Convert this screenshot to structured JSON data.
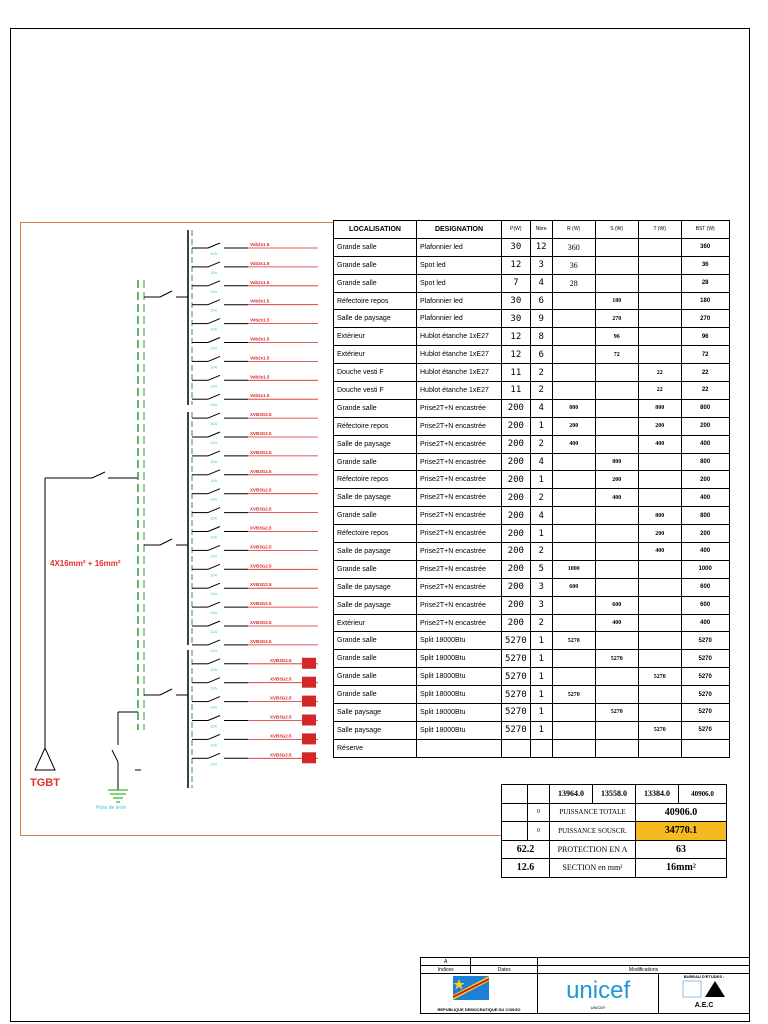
{
  "schema": {
    "tgbt_label": "TGBT",
    "cable_label": "4X16mm² + 16mm²",
    "ground_label": "Prise de terre",
    "breaker_label": "10A",
    "cable_types": {
      "cable_a": "Vob2x1.5",
      "cable_b": "Vob3x1.5",
      "cable_c": "XVB3G2.5",
      "cable_d": "XVB3G2.5"
    }
  },
  "table": {
    "headers": [
      "LOCALISATION",
      "DESIGNATION",
      "P(W)",
      "Nbre",
      "R (W)",
      "S (W)",
      "T (W)",
      "BST (W)"
    ],
    "rows": [
      {
        "loc": "Grande salle",
        "des": "Plafonnier led",
        "p": "30",
        "n": "12",
        "r": "360",
        "s": "",
        "t": "",
        "tot": "360"
      },
      {
        "loc": "Grande salle",
        "des": "Spot  led",
        "p": "12",
        "n": "3",
        "r": "36",
        "s": "",
        "t": "",
        "tot": "36"
      },
      {
        "loc": "Grande salle",
        "des": "Spot  led",
        "p": "7",
        "n": "4",
        "r": "28",
        "s": "",
        "t": "",
        "tot": "28"
      },
      {
        "loc": "Réfectoire  repos",
        "des": "Plafonnier led",
        "p": "30",
        "n": "6",
        "r": "",
        "s": "180",
        "t": "",
        "tot": "180"
      },
      {
        "loc": "Salle de paysage",
        "des": "Plafonnier led",
        "p": "30",
        "n": "9",
        "r": "",
        "s": "270",
        "t": "",
        "tot": "270"
      },
      {
        "loc": "Extérieur",
        "des": "Hublot étanche 1xE27",
        "p": "12",
        "n": "8",
        "r": "",
        "s": "96",
        "t": "",
        "tot": "96"
      },
      {
        "loc": "Extérieur",
        "des": "Hublot étanche 1xE27",
        "p": "12",
        "n": "6",
        "r": "",
        "s": "72",
        "t": "",
        "tot": "72"
      },
      {
        "loc": "Douche vesti F",
        "des": "Hublot étanche 1xE27",
        "p": "11",
        "n": "2",
        "r": "",
        "s": "",
        "t": "22",
        "tot": "22"
      },
      {
        "loc": "Douche vesti F",
        "des": "Hublot étanche 1xE27",
        "p": "11",
        "n": "2",
        "r": "",
        "s": "",
        "t": "22",
        "tot": "22"
      },
      {
        "loc": "Grande salle",
        "des": "Prise2T+N encastrée",
        "p": "200",
        "n": "4",
        "r": "800",
        "s": "",
        "t": "800",
        "tot": "800"
      },
      {
        "loc": "Réfectoire repos",
        "des": "Prise2T+N encastrée",
        "p": "200",
        "n": "1",
        "r": "200",
        "s": "",
        "t": "200",
        "tot": "200"
      },
      {
        "loc": "Salle de paysage",
        "des": "Prise2T+N encastrée",
        "p": "200",
        "n": "2",
        "r": "400",
        "s": "",
        "t": "400",
        "tot": "400"
      },
      {
        "loc": "Grande salle",
        "des": "Prise2T+N encastrée",
        "p": "200",
        "n": "4",
        "r": "",
        "s": "800",
        "t": "",
        "tot": "800"
      },
      {
        "loc": "Réfectoire repos",
        "des": "Prise2T+N encastrée",
        "p": "200",
        "n": "1",
        "r": "",
        "s": "200",
        "t": "",
        "tot": "200"
      },
      {
        "loc": "Salle de paysage",
        "des": "Prise2T+N encastrée",
        "p": "200",
        "n": "2",
        "r": "",
        "s": "400",
        "t": "",
        "tot": "400"
      },
      {
        "loc": "Grande salle",
        "des": "Prise2T+N encastrée",
        "p": "200",
        "n": "4",
        "r": "",
        "s": "",
        "t": "800",
        "tot": "800"
      },
      {
        "loc": "Réfectoire repos",
        "des": "Prise2T+N encastrée",
        "p": "200",
        "n": "1",
        "r": "",
        "s": "",
        "t": "200",
        "tot": "200"
      },
      {
        "loc": "Salle de paysage",
        "des": "Prise2T+N encastrée",
        "p": "200",
        "n": "2",
        "r": "",
        "s": "",
        "t": "400",
        "tot": "400"
      },
      {
        "loc": "Grande salle",
        "des": "Prise2T+N encastrée",
        "p": "200",
        "n": "5",
        "r": "1000",
        "s": "",
        "t": "",
        "tot": "1000"
      },
      {
        "loc": "Salle de paysage",
        "des": "Prise2T+N encastrée",
        "p": "200",
        "n": "3",
        "r": "600",
        "s": "",
        "t": "",
        "tot": "600"
      },
      {
        "loc": "Salle de paysage",
        "des": "Prise2T+N encastrée",
        "p": "200",
        "n": "3",
        "r": "",
        "s": "600",
        "t": "",
        "tot": "600"
      },
      {
        "loc": "Extérieur",
        "des": "Prise2T+N encastrée",
        "p": "200",
        "n": "2",
        "r": "",
        "s": "400",
        "t": "",
        "tot": "400"
      },
      {
        "loc": "Grande salle",
        "des": "Split 18000Btu",
        "p": "5270",
        "n": "1",
        "r": "5270",
        "s": "",
        "t": "",
        "tot": "5270"
      },
      {
        "loc": "Grande salle",
        "des": "Split 18000Btu",
        "p": "5270",
        "n": "1",
        "r": "",
        "s": "5270",
        "t": "",
        "tot": "5270"
      },
      {
        "loc": "Grande salle",
        "des": "Split 18000Btu",
        "p": "5270",
        "n": "1",
        "r": "",
        "s": "",
        "t": "5270",
        "tot": "5270"
      },
      {
        "loc": "Grande salle",
        "des": "Split 18000Btu",
        "p": "5270",
        "n": "1",
        "r": "5270",
        "s": "",
        "t": "",
        "tot": "5270"
      },
      {
        "loc": "Salle paysage",
        "des": "Split 18000Btu",
        "p": "5270",
        "n": "1",
        "r": "",
        "s": "5270",
        "t": "",
        "tot": "5270"
      },
      {
        "loc": "Salle paysage",
        "des": "Split 18000Btu",
        "p": "5270",
        "n": "1",
        "r": "",
        "s": "",
        "t": "5270",
        "tot": "5270"
      },
      {
        "loc": "Réserve",
        "des": "",
        "p": "",
        "n": "",
        "r": "",
        "s": "",
        "t": "",
        "tot": ""
      }
    ]
  },
  "summary": {
    "phase_r": "13964.0",
    "phase_s": "13558.0",
    "phase_t": "13384.0",
    "total": "40906.0",
    "zero_a": "0",
    "zero_b": "0",
    "puissance_totale_label": "PUISSANCE TOTALE",
    "puissance_totale": "40906.0",
    "puissance_souscr_label": "PUISSANCE SOUSCR.",
    "puissance_souscr": "34770.1",
    "courant": "62.2",
    "protection_label": "PROTECTION EN A",
    "protection": "63",
    "section_val": "12.6",
    "section_label": "SECTION en mm²",
    "section": "16mm²",
    "highlight_color": "#f5b922"
  },
  "title_block": {
    "index_label": "Indices",
    "dates_label": "Dates",
    "modifications_label": "Modifications",
    "index_value": "A",
    "country": "REPUBLIQUE DEMOCRATIQUE DU CONGO",
    "client": "unicef",
    "client_sub": "UNICEF",
    "bureau_label": "BUREAU D'ETUDES :",
    "bureau_name": "A.E.C"
  }
}
